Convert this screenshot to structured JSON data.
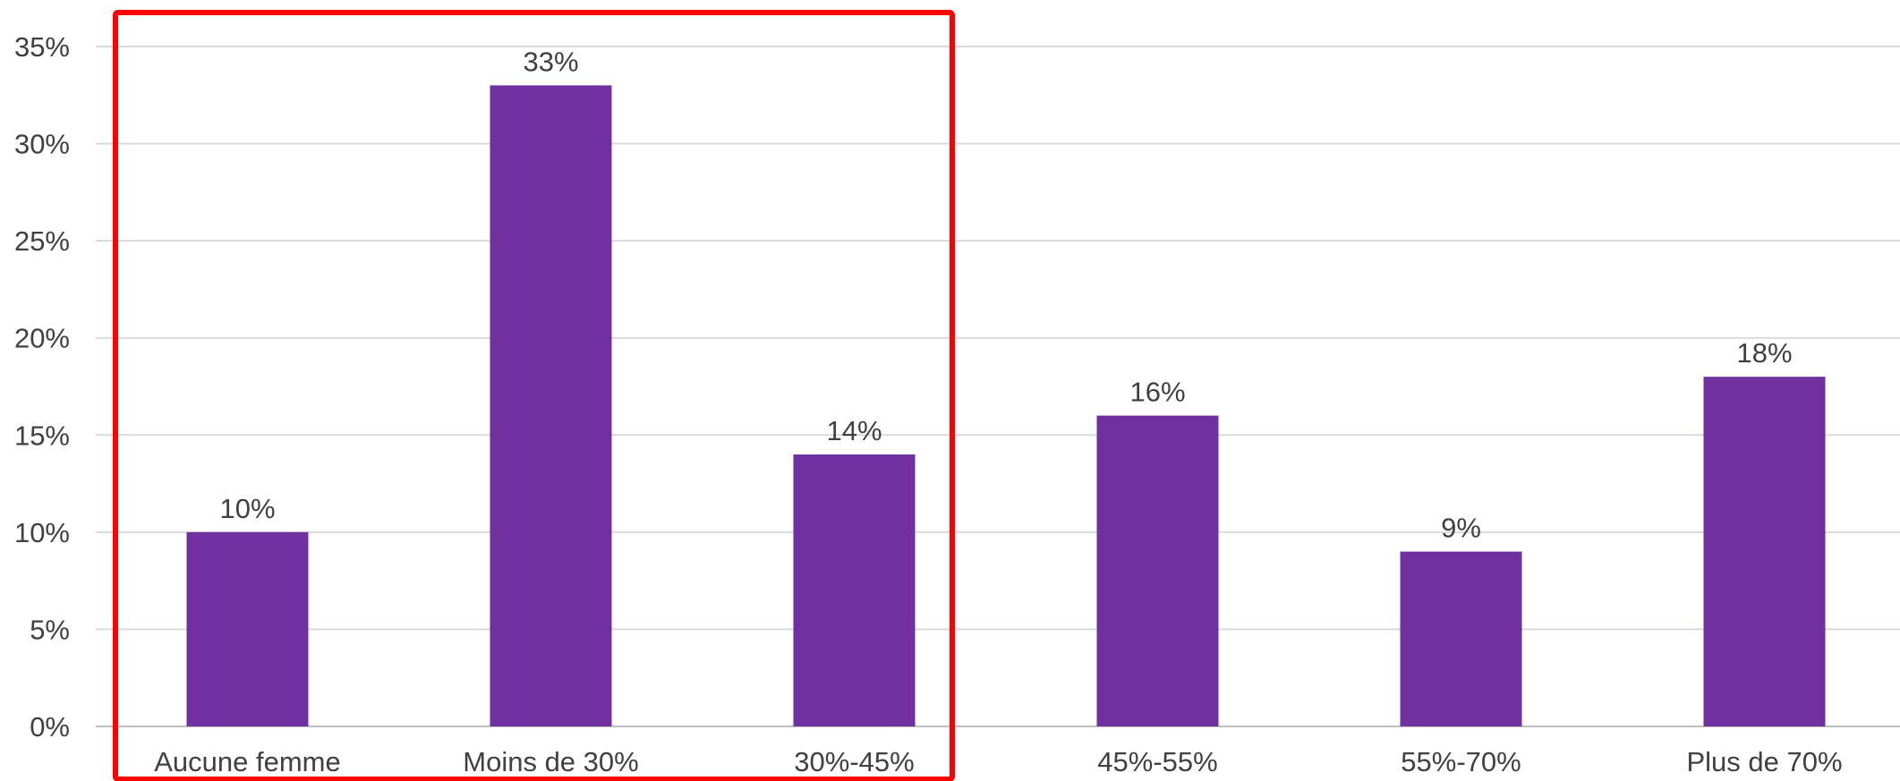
{
  "chart_data": {
    "type": "bar",
    "categories": [
      "Aucune femme",
      "Moins de 30%",
      "30%-45%",
      "45%-55%",
      "55%-70%",
      "Plus de 70%"
    ],
    "values": [
      10,
      33,
      14,
      16,
      9,
      18
    ],
    "data_labels": [
      "10%",
      "33%",
      "14%",
      "16%",
      "9%",
      "18%"
    ],
    "ylim": [
      0,
      35
    ],
    "yticks": [
      0,
      5,
      10,
      15,
      20,
      25,
      30,
      35
    ],
    "ytick_labels": [
      "0%",
      "5%",
      "10%",
      "15%",
      "20%",
      "25%",
      "30%",
      "35%"
    ],
    "title": "",
    "xlabel": "",
    "ylabel": "",
    "grid": true,
    "legend": "none",
    "bar_color": "#7030A0",
    "gridline_color": "#D9D9D9",
    "highlight": {
      "type": "rectangle",
      "color": "#FF0000",
      "covers_categories": [
        "Aucune femme",
        "Moins de 30%",
        "30%-45%"
      ]
    }
  }
}
